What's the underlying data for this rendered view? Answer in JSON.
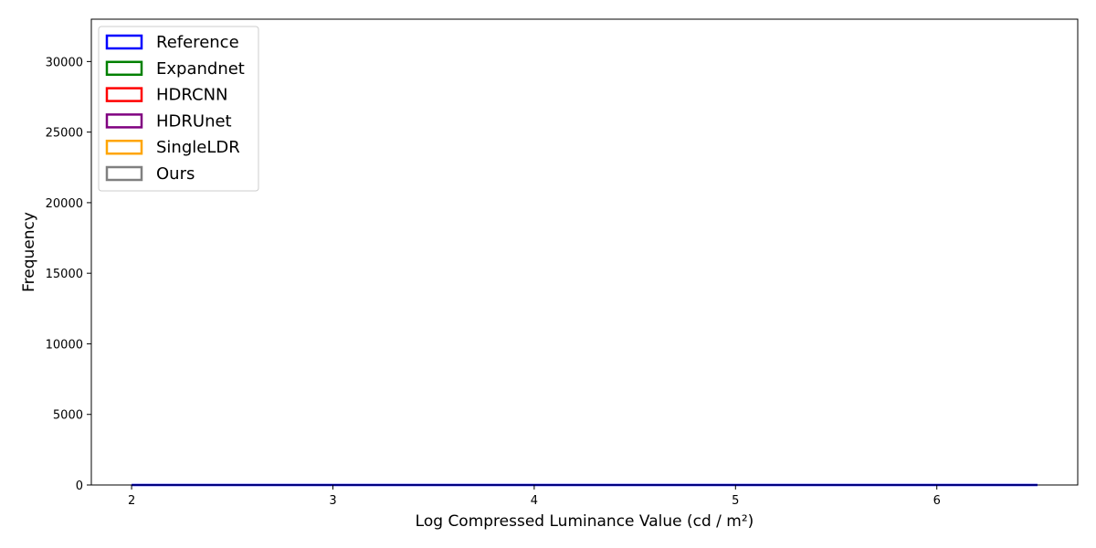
{
  "chart_data": {
    "type": "histogram-step",
    "title": "",
    "xlabel": "Log Compressed Luminance Value (cd / m²)",
    "ylabel": "Frequency",
    "xlim": [
      1.8,
      6.7
    ],
    "ylim": [
      0,
      33000
    ],
    "xticks": [
      2,
      3,
      4,
      5,
      6
    ],
    "yticks": [
      0,
      5000,
      10000,
      15000,
      20000,
      25000,
      30000
    ],
    "grid": false,
    "legend_position": "top-left",
    "bins": {
      "start": 2.0,
      "end": 6.5,
      "count": 90,
      "width": 0.05
    },
    "series": [
      {
        "name": "Reference",
        "color": "#0000ff",
        "values": [
          0,
          0,
          0,
          0,
          0,
          0,
          0,
          0,
          0,
          0,
          0,
          0,
          0,
          0,
          0,
          0,
          0,
          0,
          0,
          0,
          0,
          0,
          0,
          0,
          0,
          0,
          0,
          0,
          0,
          0,
          0,
          0,
          0,
          0,
          0,
          0,
          0,
          0,
          0,
          0,
          0,
          0,
          0,
          0,
          0,
          0,
          0,
          0,
          0,
          0,
          0,
          0,
          0,
          0,
          0,
          0,
          0,
          0,
          0,
          0,
          0,
          0,
          0,
          0,
          0,
          0,
          0,
          0,
          0,
          0,
          0,
          0,
          0,
          0,
          0,
          0,
          0,
          0,
          0,
          0,
          0,
          0,
          0,
          0,
          0,
          0,
          0,
          0,
          0,
          0
        ]
      }
    ]
  },
  "legend": [
    {
      "label": "Reference",
      "color": "#0000ff"
    },
    {
      "label": "Expandnet",
      "color": "#008000"
    },
    {
      "label": "HDRCNN",
      "color": "#ff0000"
    },
    {
      "label": "HDRUnet",
      "color": "#800080"
    },
    {
      "label": "SingleLDR",
      "color": "#ffa500"
    },
    {
      "label": "Ours",
      "color": "#808080"
    }
  ]
}
